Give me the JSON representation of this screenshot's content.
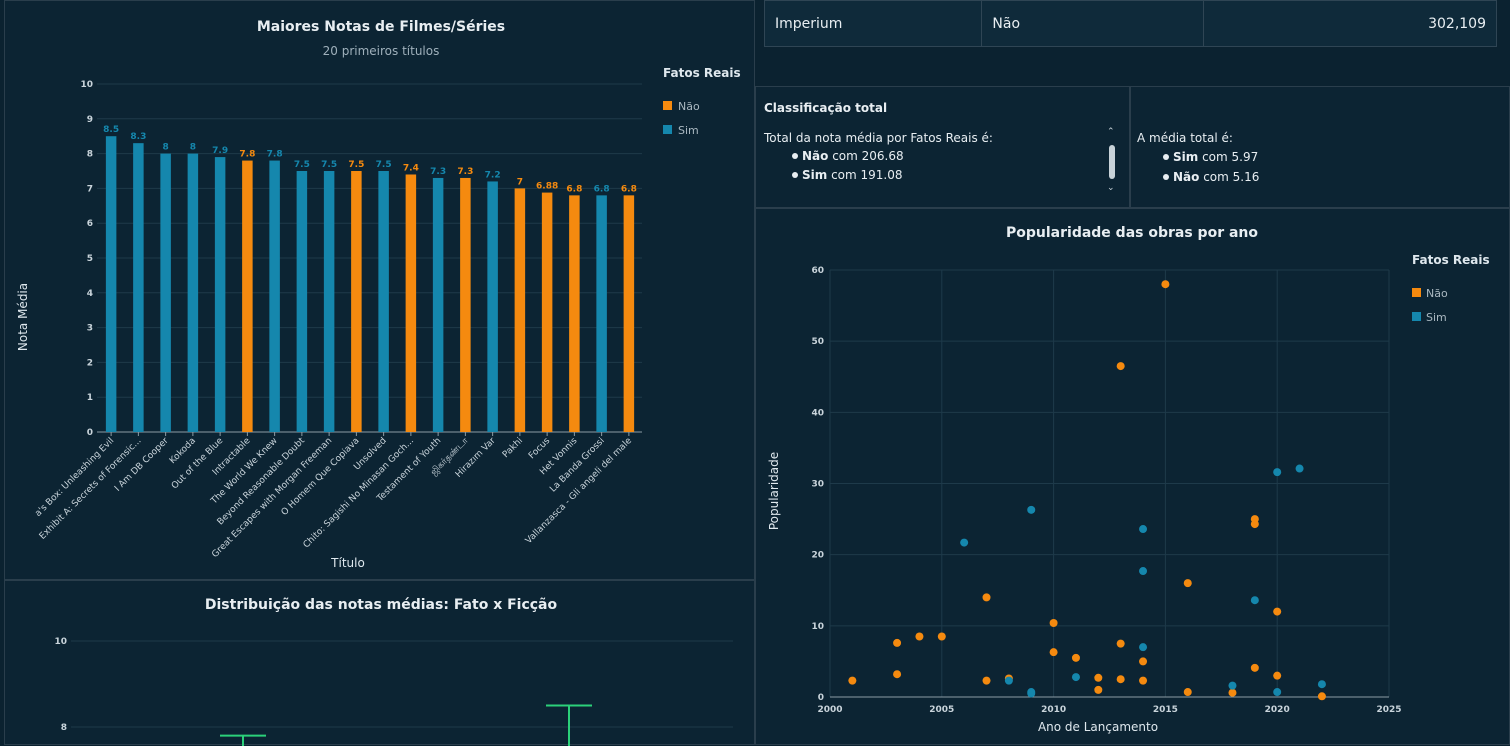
{
  "table": {
    "row": [
      "Imperium",
      "Não",
      "302,109"
    ]
  },
  "insight_classificacao": {
    "title": "Classificação total",
    "line": "Total da nota média por Fatos Reais é:",
    "items": [
      {
        "bold": "Não",
        "rest": " com 206.68"
      },
      {
        "bold": "Sim",
        "rest": " com 191.08"
      }
    ]
  },
  "insight_media": {
    "line": "A média total é:",
    "items": [
      {
        "bold": "Sim",
        "rest": " com 5.97"
      },
      {
        "bold": "Não",
        "rest": " com 5.16"
      }
    ]
  },
  "colors": {
    "sim": "#1587ad",
    "nao": "#f58a0f",
    "box": "#2bd17a"
  },
  "chart_data": [
    {
      "type": "bar",
      "title": "Maiores Notas de Filmes/Séries",
      "subtitle": "20 primeiros títulos",
      "xlabel": "Título",
      "ylabel": "Nota Média",
      "ylim": [
        0,
        10
      ],
      "yticks": [
        "0",
        "1",
        "2",
        "3",
        "4",
        "5",
        "6",
        "7",
        "8",
        "9",
        "10"
      ],
      "legend": {
        "title": "Fatos Reais",
        "items": [
          "Não",
          "Sim"
        ],
        "position": "right"
      },
      "bars": [
        {
          "category": "Pandora's Box: Unleashing Evil",
          "display": "a's Box: Unleashing Evil",
          "value": 8.5,
          "label": "8.5",
          "series": "Sim"
        },
        {
          "category": "Exhibit A: Secrets of Forensic...",
          "display": "Exhibit A: Secrets of Forensic...",
          "value": 8.3,
          "label": "8.3",
          "series": "Sim"
        },
        {
          "category": "I Am DB Cooper",
          "display": "I Am DB Cooper",
          "value": 8,
          "label": "8",
          "series": "Sim"
        },
        {
          "category": "Kokoda",
          "display": "Kokoda",
          "value": 8,
          "label": "8",
          "series": "Sim"
        },
        {
          "category": "Out of the Blue",
          "display": "Out of the Blue",
          "value": 7.9,
          "label": "7.9",
          "series": "Sim"
        },
        {
          "category": "Intractable",
          "display": "Intractable",
          "value": 7.8,
          "label": "7.8",
          "series": "Não"
        },
        {
          "category": "The World We Knew",
          "display": "The World We Knew",
          "value": 7.8,
          "label": "7.8",
          "series": "Sim"
        },
        {
          "category": "Beyond Reasonable Doubt",
          "display": "Beyond Reasonable Doubt",
          "value": 7.5,
          "label": "7.5",
          "series": "Sim"
        },
        {
          "category": "Great Escapes with Morgan Freeman",
          "display": "Great Escapes with Morgan Freeman",
          "value": 7.5,
          "label": "7.5",
          "series": "Sim"
        },
        {
          "category": "O Homem Que Copiava",
          "display": "O Homem Que Copiava",
          "value": 7.5,
          "label": "7.5",
          "series": "Não"
        },
        {
          "category": "Unsolved",
          "display": "Unsolved",
          "value": 7.5,
          "label": "7.5",
          "series": "Sim"
        },
        {
          "category": "Chito: Sagishi No Minasan Goch...",
          "display": "Chito: Sagishi No Minasan Goch...",
          "value": 7.4,
          "label": "7.4",
          "series": "Não"
        },
        {
          "category": "Testament of Youth",
          "display": "Testament of Youth",
          "value": 7.3,
          "label": "7.3",
          "series": "Sim"
        },
        {
          "category": "ஜிகர்தண்டா",
          "display": "ஜிகர்தண்டா",
          "value": 7.3,
          "label": "7.3",
          "series": "Não"
        },
        {
          "category": "Hirazım Var",
          "display": "Hirazım Var",
          "value": 7.2,
          "label": "7.2",
          "series": "Sim"
        },
        {
          "category": "Pakhi",
          "display": "Pakhi",
          "value": 7,
          "label": "7",
          "series": "Não"
        },
        {
          "category": "Focus",
          "display": "Focus",
          "value": 6.88,
          "label": "6.88",
          "series": "Não"
        },
        {
          "category": "Het Vonnis",
          "display": "Het Vonnis",
          "value": 6.8,
          "label": "6.8",
          "series": "Não"
        },
        {
          "category": "La Banda Grossi",
          "display": "La Banda Grossi",
          "value": 6.8,
          "label": "6.8",
          "series": "Sim"
        },
        {
          "category": "Vallanzasca - Gli angeli del male",
          "display": "Vallanzasca - Gli angeli del male",
          "value": 6.8,
          "label": "6.8",
          "series": "Não"
        }
      ]
    },
    {
      "type": "scatter",
      "title": "Popularidade das obras por ano",
      "xlabel": "Ano de Lançamento",
      "ylabel": "Popularidade",
      "xlim": [
        2000,
        2025
      ],
      "ylim": [
        0,
        60
      ],
      "xticks": [
        "2000",
        "2005",
        "2010",
        "2015",
        "2020",
        "2025"
      ],
      "yticks": [
        "0",
        "10",
        "20",
        "30",
        "40",
        "50",
        "60"
      ],
      "legend": {
        "title": "Fatos Reais",
        "items": [
          "Não",
          "Sim"
        ],
        "position": "right"
      },
      "series": [
        {
          "name": "Não",
          "points": [
            [
              2001,
              2.3
            ],
            [
              2003,
              7.6
            ],
            [
              2003,
              3.2
            ],
            [
              2004,
              8.5
            ],
            [
              2005,
              8.5
            ],
            [
              2007,
              14
            ],
            [
              2007,
              2.3
            ],
            [
              2008,
              2.6
            ],
            [
              2010,
              10.4
            ],
            [
              2010,
              6.3
            ],
            [
              2011,
              5.5
            ],
            [
              2012,
              2.7
            ],
            [
              2012,
              1
            ],
            [
              2013,
              46.5
            ],
            [
              2013,
              7.5
            ],
            [
              2013,
              2.5
            ],
            [
              2014,
              5
            ],
            [
              2014,
              2.3
            ],
            [
              2015,
              58
            ],
            [
              2016,
              16
            ],
            [
              2016,
              0.7
            ],
            [
              2018,
              0.6
            ],
            [
              2019,
              25
            ],
            [
              2019,
              24.3
            ],
            [
              2019,
              4.1
            ],
            [
              2020,
              12
            ],
            [
              2020,
              3
            ],
            [
              2022,
              0.1
            ]
          ]
        },
        {
          "name": "Sim",
          "points": [
            [
              2006,
              21.7
            ],
            [
              2008,
              2.3
            ],
            [
              2009,
              26.3
            ],
            [
              2009,
              0.7
            ],
            [
              2009,
              0.5
            ],
            [
              2011,
              2.8
            ],
            [
              2014,
              23.6
            ],
            [
              2014,
              17.7
            ],
            [
              2014,
              7
            ],
            [
              2018,
              1.6
            ],
            [
              2019,
              13.6
            ],
            [
              2020,
              31.6
            ],
            [
              2020,
              0.7
            ],
            [
              2021,
              32.1
            ],
            [
              2022,
              1.8
            ]
          ]
        }
      ]
    },
    {
      "type": "box",
      "title": "Distribuição das notas médias: Fato x Ficção",
      "ylim": [
        7.6,
        10.4
      ],
      "yticks": [
        "10",
        "8"
      ],
      "whisker_tops": [
        {
          "value": 7.8
        },
        {
          "value": 8.5
        }
      ]
    }
  ]
}
